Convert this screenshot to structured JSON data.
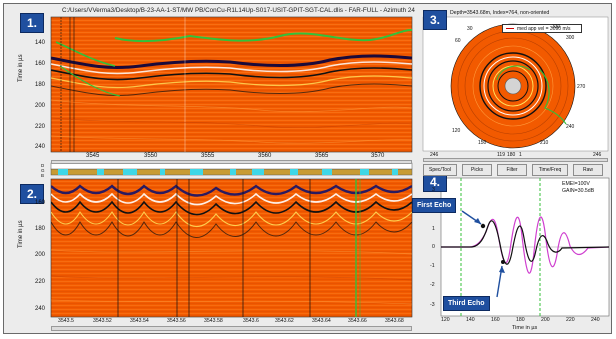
{
  "title_path": "C:/Users/VVerma3/Desktop/B-23-AA-1-ST/MW PB/ConCu-R1L14Up-S017-USIT-GPIT-SGT-CAL.dlis - FAR-FULL - Azimuth 24",
  "badges": {
    "p1": "1.",
    "p2": "2.",
    "p3": "3.",
    "p4": "4."
  },
  "panel1": {
    "ylabel": "Time in µs",
    "yticks": [
      "140",
      "160",
      "180",
      "200",
      "220",
      "240"
    ],
    "xticks": [
      "3545",
      "3550",
      "3555",
      "3560",
      "3565",
      "3570"
    ]
  },
  "strip": {
    "labels": [
      "D",
      "G",
      "B"
    ]
  },
  "panel2": {
    "ylabel": "Time in µs",
    "yticks": [
      "160",
      "180",
      "200",
      "220",
      "240"
    ],
    "xticks": [
      "3543.5",
      "3543.52",
      "3543.54",
      "3543.56",
      "3543.58",
      "3543.6",
      "3543.62",
      "3543.64",
      "3543.66",
      "3543.68"
    ]
  },
  "panel3": {
    "header": "Depth=3543.68m, Index=764, non-oriented",
    "legend": "med app vel = 3090 m/s",
    "ring_labels": [
      "60",
      "300",
      "30",
      "330",
      "270",
      "240",
      "210",
      "150",
      "120"
    ],
    "bottom_axis": [
      "246",
      "119",
      "180",
      "1",
      "246"
    ],
    "buttons": [
      "Spec/Tool",
      "Picks",
      "Filter",
      "Time/Freq",
      "Raw"
    ]
  },
  "panel4": {
    "info_line1": "EMEI=100V",
    "info_line2": "GAIN=30.5dB",
    "yticks": [
      "3",
      "2",
      "1",
      "0",
      "-1",
      "-2",
      "-3"
    ],
    "xticks": [
      "120",
      "140",
      "160",
      "180",
      "200",
      "220",
      "240"
    ],
    "xlabel": "Time in µs",
    "callout_first": "First Echo",
    "callout_third": "Third Echo"
  },
  "colors": {
    "bg": "#ececec",
    "seismic": "#f25a00",
    "badge": "#1f4f9f",
    "strip_gold": "#c89b33",
    "strip_cyan": "#3fd7e6",
    "trace_black": "#111111",
    "trace_magenta": "#cf3fcf",
    "pick_green": "#34c03a"
  }
}
